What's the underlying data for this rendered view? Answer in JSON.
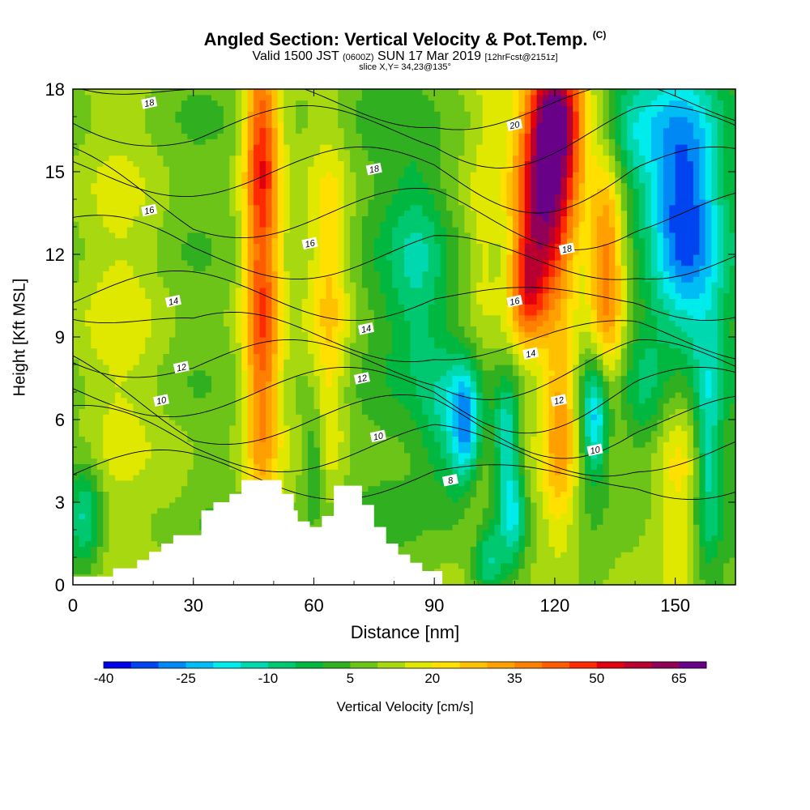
{
  "title": {
    "main": "Angled Section: Vertical Velocity & Pot.Temp.",
    "copyright": "(C)",
    "valid_prefix": "Valid 1500 JST",
    "valid_utc": "(0600Z)",
    "valid_date": "SUN 17 Mar 2019",
    "forecast": "[12hrFcst@2151z]",
    "slice": "slice X,Y= 34,23@135°"
  },
  "colorbar": {
    "title": "Vertical Velocity [cm/s]",
    "labels": [
      "-40",
      "-25",
      "-10",
      "5",
      "20",
      "35",
      "50",
      "65"
    ],
    "colors": [
      "#0000e8",
      "#0044f0",
      "#0088f4",
      "#00bcf4",
      "#00ecec",
      "#00d8b0",
      "#00c870",
      "#00b840",
      "#30b020",
      "#6cc418",
      "#a8d810",
      "#e0e800",
      "#ffe000",
      "#ffc000",
      "#ffa000",
      "#ff8000",
      "#ff5c00",
      "#ff2a00",
      "#e00010",
      "#b80030",
      "#900058",
      "#680088"
    ]
  },
  "chart_data": {
    "type": "heatmap",
    "title": "Angled Section: Vertical Velocity & Pot.Temp.",
    "xlabel": "Distance [nm]",
    "ylabel": "Height [Kft MSL]",
    "xlim": [
      0,
      165
    ],
    "ylim": [
      0,
      18
    ],
    "xticks": [
      0,
      30,
      60,
      90,
      120,
      150
    ],
    "yticks": [
      0,
      3,
      6,
      9,
      12,
      15,
      18
    ],
    "fill_variable": "Vertical Velocity [cm/s]",
    "fill_range": [
      -40,
      75
    ],
    "contour_variable": "Pot.Temp.",
    "contour_labels": [
      {
        "text": "18",
        "x": 19,
        "y": 17.5
      },
      {
        "text": "20",
        "x": 110,
        "y": 16.7
      },
      {
        "text": "18",
        "x": 75,
        "y": 15.1
      },
      {
        "text": "16",
        "x": 19,
        "y": 13.6
      },
      {
        "text": "16",
        "x": 59,
        "y": 12.4
      },
      {
        "text": "18",
        "x": 123,
        "y": 12.2
      },
      {
        "text": "14",
        "x": 25,
        "y": 10.3
      },
      {
        "text": "16",
        "x": 110,
        "y": 10.3
      },
      {
        "text": "14",
        "x": 73,
        "y": 9.3
      },
      {
        "text": "14",
        "x": 114,
        "y": 8.4
      },
      {
        "text": "12",
        "x": 27,
        "y": 7.9
      },
      {
        "text": "12",
        "x": 72,
        "y": 7.5
      },
      {
        "text": "12",
        "x": 121,
        "y": 6.7
      },
      {
        "text": "10",
        "x": 22,
        "y": 6.7
      },
      {
        "text": "10",
        "x": 76,
        "y": 5.4
      },
      {
        "text": "10",
        "x": 130,
        "y": 4.9
      },
      {
        "text": "8",
        "x": 94,
        "y": 3.8
      }
    ],
    "terrain": [
      [
        0,
        0.3
      ],
      [
        10,
        0.3
      ],
      [
        10,
        0.6
      ],
      [
        16,
        0.6
      ],
      [
        16,
        0.9
      ],
      [
        19,
        0.9
      ],
      [
        19,
        1.2
      ],
      [
        22,
        1.2
      ],
      [
        22,
        1.5
      ],
      [
        25,
        1.5
      ],
      [
        25,
        1.8
      ],
      [
        32,
        1.8
      ],
      [
        32,
        2.7
      ],
      [
        35,
        2.7
      ],
      [
        35,
        3.0
      ],
      [
        39,
        3.0
      ],
      [
        39,
        3.3
      ],
      [
        42,
        3.3
      ],
      [
        42,
        3.8
      ],
      [
        52,
        3.8
      ],
      [
        52,
        3.3
      ],
      [
        55,
        3.3
      ],
      [
        55,
        2.7
      ],
      [
        56,
        2.7
      ],
      [
        56,
        2.3
      ],
      [
        59,
        2.3
      ],
      [
        59,
        2.1
      ],
      [
        62,
        2.1
      ],
      [
        62,
        2.5
      ],
      [
        65,
        2.5
      ],
      [
        65,
        3.6
      ],
      [
        72,
        3.6
      ],
      [
        72,
        2.9
      ],
      [
        75,
        2.9
      ],
      [
        75,
        2.1
      ],
      [
        78,
        2.1
      ],
      [
        78,
        1.5
      ],
      [
        81,
        1.5
      ],
      [
        81,
        1.1
      ],
      [
        84,
        1.1
      ],
      [
        84,
        0.8
      ],
      [
        87,
        0.8
      ],
      [
        87,
        0.5
      ],
      [
        92,
        0.5
      ],
      [
        92,
        0.0
      ],
      [
        0,
        0.0
      ]
    ],
    "hotspots": [
      {
        "x": 47,
        "y": 10.0,
        "sx": 3.2,
        "sy": 5.5,
        "w": 45
      },
      {
        "x": 47,
        "y": 16.5,
        "sx": 3.0,
        "sy": 2.2,
        "w": 30
      },
      {
        "x": 64,
        "y": 11.5,
        "sx": 3.5,
        "sy": 3.5,
        "w": 25
      },
      {
        "x": 64,
        "y": 6.0,
        "sx": 2.5,
        "sy": 2.5,
        "w": 15
      },
      {
        "x": 118,
        "y": 14.0,
        "sx": 5.5,
        "sy": 3.0,
        "w": 70
      },
      {
        "x": 121,
        "y": 17.2,
        "sx": 5.0,
        "sy": 1.5,
        "w": 50
      },
      {
        "x": 113,
        "y": 10.8,
        "sx": 3.0,
        "sy": 1.5,
        "w": 35
      },
      {
        "x": 133,
        "y": 11.5,
        "sx": 3.0,
        "sy": 3.0,
        "w": 40
      },
      {
        "x": 121,
        "y": 4.3,
        "sx": 3.5,
        "sy": 2.5,
        "w": 32
      },
      {
        "x": 122,
        "y": 7.0,
        "sx": 3.0,
        "sy": 1.5,
        "w": 20
      },
      {
        "x": 152,
        "y": 4.5,
        "sx": 5.0,
        "sy": 3.0,
        "w": 25
      },
      {
        "x": 12,
        "y": 9.5,
        "sx": 8.0,
        "sy": 6.0,
        "w": 15
      },
      {
        "x": 26,
        "y": 3.5,
        "sx": 4.0,
        "sy": 2.0,
        "w": 12
      },
      {
        "x": 36,
        "y": 9.0,
        "sx": 4.0,
        "sy": 7.0,
        "w": 10
      },
      {
        "x": 112,
        "y": 3.0,
        "sx": 2.5,
        "sy": 2.5,
        "w": 18
      },
      {
        "x": 100,
        "y": 2.0,
        "sx": 2.0,
        "sy": 1.5,
        "w": 15
      },
      {
        "x": 102,
        "y": 12.5,
        "sx": 2.5,
        "sy": 2.5,
        "w": 15
      },
      {
        "x": 104,
        "y": 17.5,
        "sx": 3.0,
        "sy": 1.5,
        "w": 15
      }
    ],
    "coldspots": [
      {
        "x": 152,
        "y": 14.5,
        "sx": 6.0,
        "sy": 3.5,
        "w": -25
      },
      {
        "x": 153,
        "y": 11.0,
        "sx": 8.0,
        "sy": 4.0,
        "w": -8
      },
      {
        "x": 140,
        "y": 16.5,
        "sx": 6.0,
        "sy": 2.0,
        "w": -12
      },
      {
        "x": 130,
        "y": 6.0,
        "sx": 2.5,
        "sy": 1.5,
        "w": -25
      },
      {
        "x": 98,
        "y": 5.8,
        "sx": 2.5,
        "sy": 1.5,
        "w": -20
      },
      {
        "x": 108,
        "y": 5.5,
        "sx": 2.5,
        "sy": 1.5,
        "w": -15
      },
      {
        "x": 110,
        "y": 2.5,
        "sx": 2.5,
        "sy": 1.5,
        "w": -20
      },
      {
        "x": 103,
        "y": 0.8,
        "sx": 3.0,
        "sy": 1.0,
        "w": -15
      },
      {
        "x": 86,
        "y": 11.5,
        "sx": 6.0,
        "sy": 3.0,
        "w": -10
      },
      {
        "x": 94,
        "y": 6.0,
        "sx": 5.0,
        "sy": 2.0,
        "w": -12
      },
      {
        "x": 3,
        "y": 2.5,
        "sx": 3.0,
        "sy": 1.5,
        "w": -12
      },
      {
        "x": 60,
        "y": 4.5,
        "sx": 2.0,
        "sy": 1.5,
        "w": -5
      },
      {
        "x": 158,
        "y": 4.5,
        "sx": 2.5,
        "sy": 3.0,
        "w": -15
      },
      {
        "x": 142,
        "y": 7.0,
        "sx": 4.0,
        "sy": 2.0,
        "w": -5
      }
    ]
  }
}
